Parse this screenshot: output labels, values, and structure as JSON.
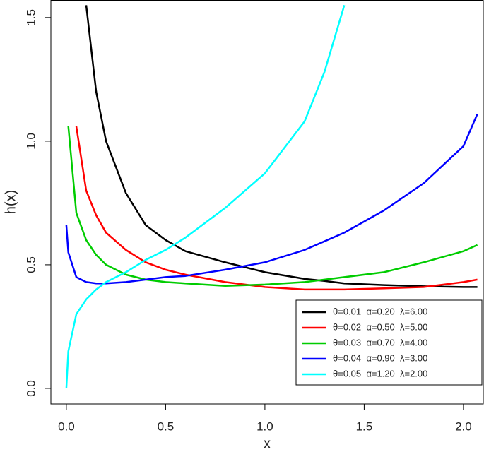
{
  "chart_data": {
    "type": "line",
    "x_label": "x",
    "y_label": "h(x)",
    "x": [
      0,
      0.01,
      0.05,
      0.1,
      0.15,
      0.2,
      0.3,
      0.4,
      0.5,
      0.6,
      0.8,
      1.0,
      1.2,
      1.3,
      1.4,
      1.6,
      1.8,
      2.0,
      2.07
    ],
    "series": [
      {
        "name": "θ=0.01  α=0.20  λ=6.00",
        "color": "#000000",
        "values": [
          null,
          null,
          null,
          1.55,
          1.2,
          1.0,
          0.79,
          0.66,
          0.6,
          0.555,
          0.51,
          0.47,
          0.443,
          0.435,
          0.425,
          0.418,
          0.413,
          0.41,
          0.41
        ]
      },
      {
        "name": "θ=0.02  α=0.50  λ=5.00",
        "color": "#ff0000",
        "values": [
          null,
          null,
          1.06,
          0.8,
          0.7,
          0.63,
          0.56,
          0.51,
          0.48,
          0.46,
          0.43,
          0.41,
          0.4,
          0.4,
          0.4,
          0.405,
          0.41,
          0.43,
          0.44
        ]
      },
      {
        "name": "θ=0.03  α=0.70  λ=4.00",
        "color": "#00cc00",
        "values": [
          null,
          1.06,
          0.71,
          0.6,
          0.54,
          0.5,
          0.46,
          0.44,
          0.43,
          0.425,
          0.415,
          0.42,
          0.43,
          0.44,
          0.45,
          0.47,
          0.51,
          0.555,
          0.58
        ]
      },
      {
        "name": "θ=0.04  α=0.90  λ=3.00",
        "color": "#0000ff",
        "values": [
          0.66,
          0.55,
          0.45,
          0.43,
          0.425,
          0.425,
          0.43,
          0.44,
          0.45,
          0.455,
          0.48,
          0.51,
          0.56,
          0.595,
          0.63,
          0.72,
          0.83,
          0.98,
          1.11
        ]
      },
      {
        "name": "θ=0.05  α=1.20  λ=2.00",
        "color": "#00ffff",
        "values": [
          0,
          0.15,
          0.3,
          0.36,
          0.4,
          0.43,
          0.47,
          0.52,
          0.56,
          0.61,
          0.73,
          0.87,
          1.08,
          1.28,
          1.55,
          null,
          null,
          null,
          null
        ]
      }
    ],
    "xlim": [
      -0.078,
      2.1
    ],
    "ylim": [
      -0.063,
      1.571
    ],
    "xticks": [
      {
        "value": 0,
        "label": "0.0"
      },
      {
        "value": 0.5,
        "label": "0.5"
      },
      {
        "value": 1,
        "label": "1.0"
      },
      {
        "value": 1.5,
        "label": "1.5"
      },
      {
        "value": 2,
        "label": "2.0"
      }
    ],
    "yticks": [
      {
        "value": 0,
        "label": "0.0"
      },
      {
        "value": 0.5,
        "label": "0.5"
      },
      {
        "value": 1,
        "label": "1.0"
      },
      {
        "value": 1.5,
        "label": "1.5"
      }
    ],
    "legend": "bottom-right"
  }
}
